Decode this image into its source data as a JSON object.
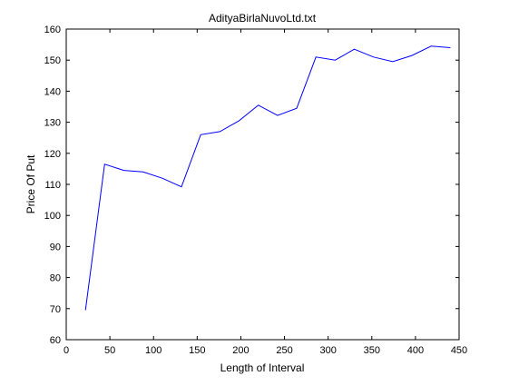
{
  "chart_data": {
    "type": "line",
    "title": "AdityaBirlaNuvoLtd.txt",
    "xlabel": "Length of Interval",
    "ylabel": "Price Of Put",
    "xlim": [
      0,
      450
    ],
    "ylim": [
      60,
      160
    ],
    "xticks": [
      0,
      50,
      100,
      150,
      200,
      250,
      300,
      350,
      400,
      450
    ],
    "yticks": [
      60,
      70,
      80,
      90,
      100,
      110,
      120,
      130,
      140,
      150,
      160
    ],
    "grid": false,
    "line_color": "#0000ff",
    "series": [
      {
        "x": [
          22,
          44,
          66,
          88,
          110,
          132,
          154,
          176,
          198,
          220,
          242,
          264,
          286,
          308,
          330,
          352,
          374,
          396,
          418,
          440
        ],
        "y": [
          69.5,
          116.5,
          114.5,
          114,
          112,
          109.2,
          126,
          127,
          130.5,
          135.5,
          132.2,
          134.5,
          151,
          150,
          153.5,
          151,
          149.5,
          151.5,
          154.5,
          154
        ]
      }
    ]
  }
}
